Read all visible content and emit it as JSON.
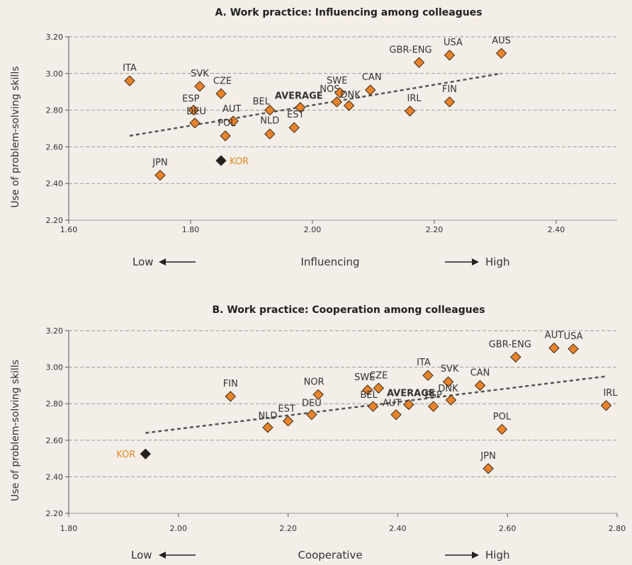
{
  "chart_data": [
    {
      "type": "scatter",
      "title": "A. Work practice: Influencing among colleagues",
      "ylabel": "Use of problem-solving skills",
      "xlabel": "Influencing",
      "low_label": "Low",
      "high_label": "High",
      "xlim": [
        1.6,
        2.5
      ],
      "ylim": [
        2.2,
        3.2
      ],
      "xticks": [
        "1.60",
        "1.80",
        "2.00",
        "2.20",
        "2.40"
      ],
      "yticks": [
        "2.20",
        "2.40",
        "2.60",
        "2.80",
        "3.00",
        "3.20"
      ],
      "trendline": {
        "x": [
          1.7,
          2.31
        ],
        "y": [
          2.66,
          3.0
        ]
      },
      "points": [
        {
          "label": "ITA",
          "x": 1.7,
          "y": 2.96
        },
        {
          "label": "JPN",
          "x": 1.75,
          "y": 2.445
        },
        {
          "label": "SVK",
          "x": 1.815,
          "y": 2.93
        },
        {
          "label": "ESP",
          "x": 1.805,
          "y": 2.8
        },
        {
          "label": "DEU",
          "x": 1.807,
          "y": 2.73
        },
        {
          "label": "CZE",
          "x": 1.85,
          "y": 2.89
        },
        {
          "label": "KOR",
          "x": 1.85,
          "y": 2.525,
          "highlight": true
        },
        {
          "label": "AUT",
          "x": 1.87,
          "y": 2.74
        },
        {
          "label": "POL",
          "x": 1.857,
          "y": 2.66
        },
        {
          "label": "BEL",
          "x": 1.93,
          "y": 2.8
        },
        {
          "label": "NLD",
          "x": 1.93,
          "y": 2.67
        },
        {
          "label": "AVERAGE",
          "x": 1.98,
          "y": 2.815,
          "bold": true
        },
        {
          "label": "EST",
          "x": 1.97,
          "y": 2.705
        },
        {
          "label": "NOS",
          "x": 2.04,
          "y": 2.845
        },
        {
          "label": "SWE",
          "x": 2.045,
          "y": 2.895
        },
        {
          "label": "DNK",
          "x": 2.06,
          "y": 2.825
        },
        {
          "label": "CAN",
          "x": 2.095,
          "y": 2.91
        },
        {
          "label": "IRL",
          "x": 2.16,
          "y": 2.795
        },
        {
          "label": "GBR-ENG",
          "x": 2.175,
          "y": 3.06
        },
        {
          "label": "USA",
          "x": 2.225,
          "y": 3.1
        },
        {
          "label": "FIN",
          "x": 2.225,
          "y": 2.845
        },
        {
          "label": "AUS",
          "x": 2.31,
          "y": 3.11
        }
      ]
    },
    {
      "type": "scatter",
      "title": "B. Work practice: Cooperation among colleagues",
      "ylabel": "Use of problem-solving skills",
      "xlabel": "Cooperative",
      "low_label": "Low",
      "high_label": "High",
      "xlim": [
        1.8,
        2.8
      ],
      "ylim": [
        2.2,
        3.2
      ],
      "xticks": [
        "1.80",
        "2.00",
        "2.20",
        "2.40",
        "2.60",
        "2.80"
      ],
      "yticks": [
        "2.20",
        "2.40",
        "2.60",
        "2.80",
        "3.00",
        "3.20"
      ],
      "trendline": {
        "x": [
          1.94,
          2.78
        ],
        "y": [
          2.64,
          2.95
        ]
      },
      "points": [
        {
          "label": "KOR",
          "x": 1.94,
          "y": 2.525,
          "highlight": true
        },
        {
          "label": "FIN",
          "x": 2.095,
          "y": 2.84
        },
        {
          "label": "NLD",
          "x": 2.163,
          "y": 2.67
        },
        {
          "label": "EST",
          "x": 2.2,
          "y": 2.705
        },
        {
          "label": "DEU",
          "x": 2.243,
          "y": 2.74
        },
        {
          "label": "NOR",
          "x": 2.255,
          "y": 2.85
        },
        {
          "label": "SWE",
          "x": 2.345,
          "y": 2.875
        },
        {
          "label": "CZE",
          "x": 2.365,
          "y": 2.885
        },
        {
          "label": "BEL",
          "x": 2.355,
          "y": 2.785
        },
        {
          "label": "AUT",
          "x": 2.397,
          "y": 2.74
        },
        {
          "label": "AVERAGE",
          "x": 2.42,
          "y": 2.795,
          "bold": true
        },
        {
          "label": "ITA",
          "x": 2.455,
          "y": 2.955
        },
        {
          "label": "ESP",
          "x": 2.465,
          "y": 2.785
        },
        {
          "label": "SVK",
          "x": 2.492,
          "y": 2.92
        },
        {
          "label": "DNK",
          "x": 2.497,
          "y": 2.82
        },
        {
          "label": "CAN",
          "x": 2.55,
          "y": 2.9
        },
        {
          "label": "JPN",
          "x": 2.565,
          "y": 2.445
        },
        {
          "label": "POL",
          "x": 2.59,
          "y": 2.66
        },
        {
          "label": "GBR-ENG",
          "x": 2.615,
          "y": 3.055
        },
        {
          "label": "AUT",
          "x": 2.685,
          "y": 3.105
        },
        {
          "label": "USA",
          "x": 2.72,
          "y": 3.1
        },
        {
          "label": "IRL",
          "x": 2.78,
          "y": 2.79
        }
      ]
    }
  ],
  "colors": {
    "background": "#f3eee7",
    "marker_fill": "#e8832a",
    "marker_stroke": "#3a2a1a",
    "highlight_marker": "#222222",
    "highlight_label": "#e58a2a",
    "grid": "#9a9a9a",
    "trend": "#555555"
  }
}
